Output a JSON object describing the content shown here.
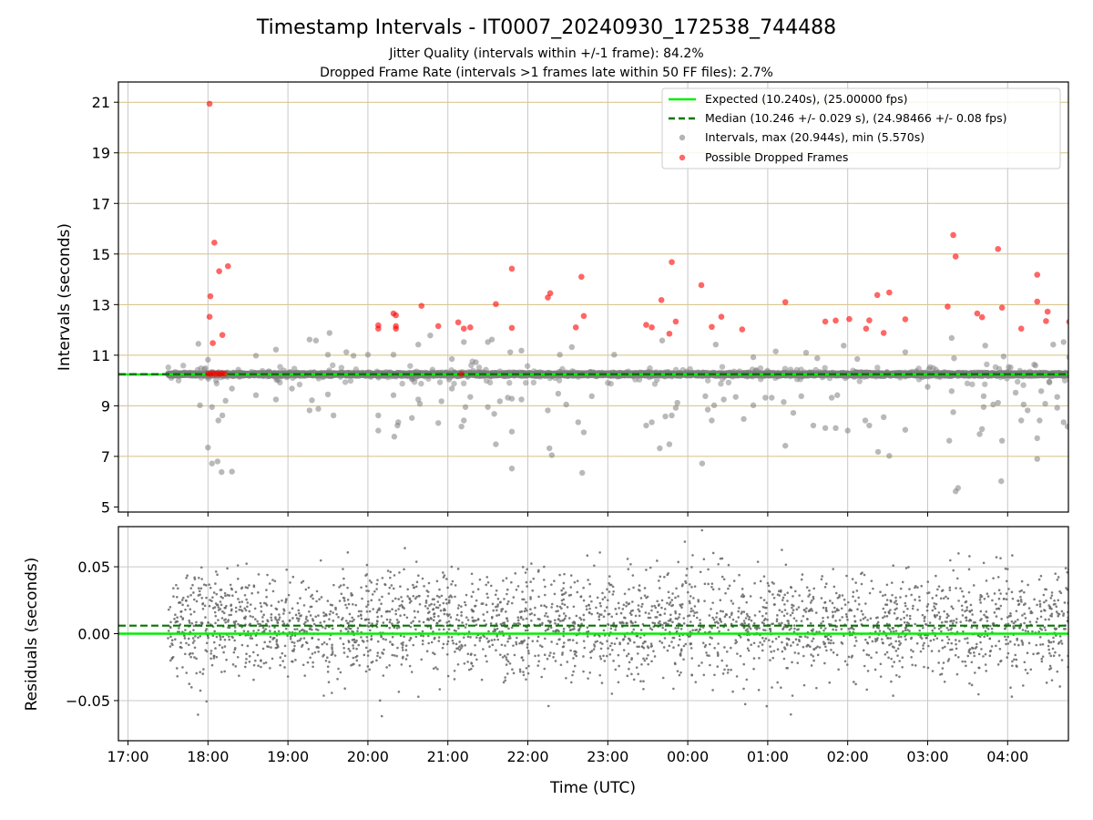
{
  "chart_data": [
    {
      "type": "scatter",
      "title": "Timestamp Intervals - IT0007_20240930_172538_744488",
      "subtitle_lines": [
        "Jitter Quality (intervals within +/-1 frame): 84.2%",
        "Dropped Frame Rate (intervals >1 frames late within 50 FF files): 2.7%"
      ],
      "xlabel": "",
      "ylabel": "Intervals (seconds)",
      "xlim_hours_since_1700": [
        -0.12,
        11.76
      ],
      "ylim": [
        4.8,
        21.8
      ],
      "yticks": [
        5,
        7,
        9,
        11,
        13,
        15,
        17,
        19,
        21
      ],
      "ytick_labels": [
        "5",
        "7",
        "9",
        "11",
        "13",
        "15",
        "17",
        "19",
        "21"
      ],
      "grid": true,
      "legend_position": "top-right",
      "legend": [
        "Expected (10.240s), (25.00000 fps)",
        "Median (10.246 +/- 0.029 s), (24.98466 +/- 0.08 fps)",
        "Intervals, max (20.944s), min (5.570s)",
        "Possible Dropped Frames"
      ],
      "expected_interval": 10.24,
      "median_interval": 10.246,
      "interval_max": 20.944,
      "interval_min": 5.57,
      "data_start_hour": 17.5,
      "colors": {
        "expected": "#00ee00",
        "median": "#007700",
        "intervals": "#808080",
        "dropped": "#ff0000",
        "major_grid": "#c8c8c8",
        "minor_grid": "#d2b870"
      },
      "dropped_frames": [
        [
          18.02,
          20.94
        ],
        [
          18.08,
          15.45
        ],
        [
          18.14,
          14.32
        ],
        [
          18.25,
          14.52
        ],
        [
          18.03,
          13.33
        ],
        [
          18.02,
          12.52
        ],
        [
          18.06,
          11.48
        ],
        [
          18.18,
          11.8
        ],
        [
          20.13,
          12.18
        ],
        [
          20.13,
          12.05
        ],
        [
          20.32,
          12.65
        ],
        [
          20.35,
          12.58
        ],
        [
          20.35,
          12.15
        ],
        [
          20.35,
          12.05
        ],
        [
          20.67,
          12.95
        ],
        [
          20.88,
          12.15
        ],
        [
          21.13,
          12.3
        ],
        [
          21.2,
          12.05
        ],
        [
          21.28,
          12.1
        ],
        [
          21.6,
          13.02
        ],
        [
          21.8,
          14.42
        ],
        [
          21.8,
          12.08
        ],
        [
          22.25,
          13.28
        ],
        [
          22.28,
          13.45
        ],
        [
          22.6,
          12.1
        ],
        [
          22.67,
          14.1
        ],
        [
          22.7,
          12.55
        ],
        [
          23.48,
          12.2
        ],
        [
          23.55,
          12.1
        ],
        [
          23.67,
          13.18
        ],
        [
          23.77,
          11.85
        ],
        [
          23.8,
          14.68
        ],
        [
          23.85,
          12.33
        ],
        [
          24.17,
          13.77
        ],
        [
          24.3,
          12.12
        ],
        [
          24.42,
          12.52
        ],
        [
          24.68,
          12.02
        ],
        [
          25.22,
          13.1
        ],
        [
          25.72,
          12.33
        ],
        [
          25.85,
          12.37
        ],
        [
          26.02,
          12.43
        ],
        [
          26.23,
          12.05
        ],
        [
          26.27,
          12.38
        ],
        [
          26.37,
          13.38
        ],
        [
          26.45,
          11.88
        ],
        [
          26.52,
          13.48
        ],
        [
          26.72,
          12.42
        ],
        [
          27.25,
          12.92
        ],
        [
          27.32,
          15.75
        ],
        [
          27.35,
          14.9
        ],
        [
          27.62,
          12.65
        ],
        [
          27.68,
          12.5
        ],
        [
          27.88,
          15.2
        ],
        [
          27.93,
          12.88
        ],
        [
          28.17,
          12.05
        ],
        [
          28.37,
          14.18
        ],
        [
          28.37,
          13.12
        ],
        [
          28.48,
          12.35
        ],
        [
          28.5,
          12.72
        ],
        [
          28.77,
          12.32
        ],
        [
          18.0,
          10.27
        ],
        [
          18.03,
          10.26
        ],
        [
          18.06,
          10.28
        ],
        [
          18.09,
          10.26
        ],
        [
          18.12,
          10.27
        ],
        [
          18.15,
          10.26
        ],
        [
          18.18,
          10.28
        ],
        [
          18.21,
          10.27
        ],
        [
          21.17,
          10.26
        ]
      ],
      "outlier_intervals": [
        [
          18.0,
          7.35
        ],
        [
          18.05,
          6.72
        ],
        [
          18.12,
          6.8
        ],
        [
          18.17,
          6.38
        ],
        [
          18.3,
          6.4
        ],
        [
          18.13,
          8.42
        ],
        [
          18.18,
          8.62
        ],
        [
          18.05,
          8.95
        ],
        [
          17.9,
          9.02
        ],
        [
          18.22,
          9.2
        ],
        [
          18.3,
          9.68
        ],
        [
          17.88,
          11.45
        ],
        [
          18.0,
          10.82
        ],
        [
          18.6,
          9.42
        ],
        [
          18.85,
          9.25
        ],
        [
          18.6,
          10.98
        ],
        [
          18.85,
          11.22
        ],
        [
          19.05,
          9.68
        ],
        [
          19.27,
          8.82
        ],
        [
          19.3,
          9.22
        ],
        [
          19.38,
          8.88
        ],
        [
          19.5,
          9.45
        ],
        [
          19.5,
          11.02
        ],
        [
          19.27,
          11.62
        ],
        [
          19.35,
          11.58
        ],
        [
          19.52,
          11.88
        ],
        [
          19.57,
          8.62
        ],
        [
          19.73,
          11.12
        ],
        [
          19.82,
          10.98
        ],
        [
          20.0,
          11.02
        ],
        [
          20.13,
          8.62
        ],
        [
          20.13,
          8.02
        ],
        [
          20.32,
          9.42
        ],
        [
          20.33,
          7.78
        ],
        [
          20.37,
          8.22
        ],
        [
          20.38,
          8.35
        ],
        [
          20.32,
          11.02
        ],
        [
          20.55,
          8.52
        ],
        [
          20.63,
          9.25
        ],
        [
          20.65,
          9.08
        ],
        [
          20.63,
          11.42
        ],
        [
          20.78,
          11.78
        ],
        [
          20.88,
          8.32
        ],
        [
          20.92,
          9.18
        ],
        [
          21.05,
          9.68
        ],
        [
          21.05,
          10.85
        ],
        [
          21.17,
          8.18
        ],
        [
          21.2,
          8.42
        ],
        [
          21.22,
          8.95
        ],
        [
          21.28,
          9.35
        ],
        [
          21.2,
          11.52
        ],
        [
          21.35,
          10.72
        ],
        [
          21.5,
          8.95
        ],
        [
          21.58,
          8.68
        ],
        [
          21.6,
          7.48
        ],
        [
          21.65,
          9.18
        ],
        [
          21.75,
          9.32
        ],
        [
          21.8,
          6.52
        ],
        [
          21.8,
          7.98
        ],
        [
          21.8,
          9.28
        ],
        [
          21.5,
          11.52
        ],
        [
          21.55,
          11.62
        ],
        [
          21.78,
          11.12
        ],
        [
          21.92,
          9.25
        ],
        [
          21.92,
          11.18
        ],
        [
          22.25,
          8.82
        ],
        [
          22.27,
          7.32
        ],
        [
          22.3,
          7.05
        ],
        [
          22.38,
          9.48
        ],
        [
          22.4,
          11.02
        ],
        [
          22.48,
          9.05
        ],
        [
          22.55,
          11.32
        ],
        [
          22.63,
          8.35
        ],
        [
          22.7,
          7.95
        ],
        [
          22.68,
          6.35
        ],
        [
          22.8,
          9.38
        ],
        [
          23.08,
          11.02
        ],
        [
          23.48,
          8.22
        ],
        [
          23.55,
          8.35
        ],
        [
          23.65,
          7.32
        ],
        [
          23.72,
          8.58
        ],
        [
          23.77,
          7.48
        ],
        [
          23.8,
          8.62
        ],
        [
          23.85,
          8.92
        ],
        [
          23.87,
          9.12
        ],
        [
          23.68,
          11.58
        ],
        [
          24.18,
          6.72
        ],
        [
          24.22,
          9.38
        ],
        [
          24.25,
          8.85
        ],
        [
          24.3,
          8.42
        ],
        [
          24.33,
          9.02
        ],
        [
          24.35,
          11.42
        ],
        [
          24.45,
          9.25
        ],
        [
          24.6,
          9.35
        ],
        [
          24.7,
          8.48
        ],
        [
          24.82,
          9.02
        ],
        [
          24.82,
          10.92
        ],
        [
          24.97,
          9.32
        ],
        [
          25.05,
          9.32
        ],
        [
          25.1,
          11.15
        ],
        [
          25.2,
          9.15
        ],
        [
          25.22,
          7.42
        ],
        [
          25.32,
          8.72
        ],
        [
          25.42,
          9.38
        ],
        [
          25.48,
          11.1
        ],
        [
          25.57,
          8.22
        ],
        [
          25.62,
          10.88
        ],
        [
          25.72,
          8.12
        ],
        [
          25.8,
          9.32
        ],
        [
          25.85,
          8.12
        ],
        [
          25.87,
          9.42
        ],
        [
          25.95,
          11.38
        ],
        [
          26.0,
          8.02
        ],
        [
          26.12,
          10.85
        ],
        [
          26.22,
          8.42
        ],
        [
          26.27,
          8.22
        ],
        [
          26.38,
          7.18
        ],
        [
          26.45,
          8.55
        ],
        [
          26.52,
          7.02
        ],
        [
          26.72,
          8.05
        ],
        [
          26.72,
          11.12
        ],
        [
          27.0,
          9.75
        ],
        [
          27.27,
          7.62
        ],
        [
          27.3,
          9.58
        ],
        [
          27.32,
          8.75
        ],
        [
          27.35,
          5.62
        ],
        [
          27.38,
          5.75
        ],
        [
          27.3,
          11.68
        ],
        [
          27.33,
          10.88
        ],
        [
          27.65,
          7.88
        ],
        [
          27.68,
          8.08
        ],
        [
          27.7,
          8.95
        ],
        [
          27.7,
          9.38
        ],
        [
          27.72,
          11.38
        ],
        [
          27.82,
          9.05
        ],
        [
          27.88,
          9.12
        ],
        [
          27.93,
          7.62
        ],
        [
          27.92,
          6.02
        ],
        [
          27.95,
          10.95
        ],
        [
          28.1,
          9.52
        ],
        [
          28.17,
          8.42
        ],
        [
          28.2,
          9.05
        ],
        [
          28.25,
          8.82
        ],
        [
          28.37,
          7.72
        ],
        [
          28.37,
          6.9
        ],
        [
          28.4,
          8.42
        ],
        [
          28.42,
          9.58
        ],
        [
          28.47,
          9.08
        ],
        [
          28.52,
          9.95
        ],
        [
          28.57,
          11.42
        ],
        [
          28.62,
          9.35
        ],
        [
          28.62,
          8.92
        ],
        [
          28.7,
          8.35
        ],
        [
          28.75,
          8.18
        ],
        [
          28.7,
          11.52
        ],
        [
          28.77,
          10.92
        ]
      ]
    },
    {
      "type": "scatter",
      "ylabel": "Residuals (seconds)",
      "xlabel": "Time (UTC)",
      "ylim": [
        -0.08,
        0.08
      ],
      "yticks": [
        -0.05,
        0.0,
        0.05
      ],
      "ytick_labels": [
        "−0.05",
        "0.00",
        "0.05"
      ],
      "xtick_labels": [
        "17:00",
        "18:00",
        "19:00",
        "20:00",
        "21:00",
        "22:00",
        "23:00",
        "00:00",
        "01:00",
        "02:00",
        "03:00",
        "04:00"
      ],
      "expected_residual": 0.0,
      "median_residual": 0.006,
      "residual_spread_sd": 0.02,
      "data_range_hours": [
        17.5,
        28.77
      ]
    }
  ]
}
